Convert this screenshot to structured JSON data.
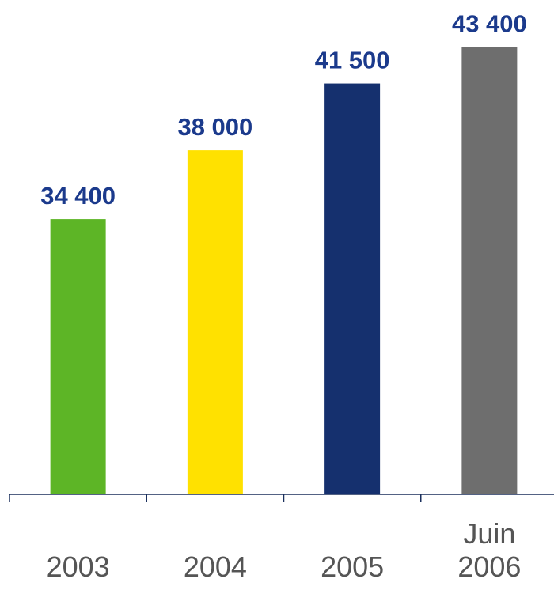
{
  "chart_data": {
    "type": "bar",
    "categories": [
      "2003",
      "2004",
      "2005",
      "Juin 2006"
    ],
    "values": [
      34400,
      38000,
      41500,
      43400
    ],
    "value_labels": [
      "34 400",
      "38 000",
      "41 500",
      "43 400"
    ],
    "colors": [
      "#5db526",
      "#ffe100",
      "#15306e",
      "#6e6e6e"
    ],
    "ylim": [
      20000,
      45000
    ]
  }
}
